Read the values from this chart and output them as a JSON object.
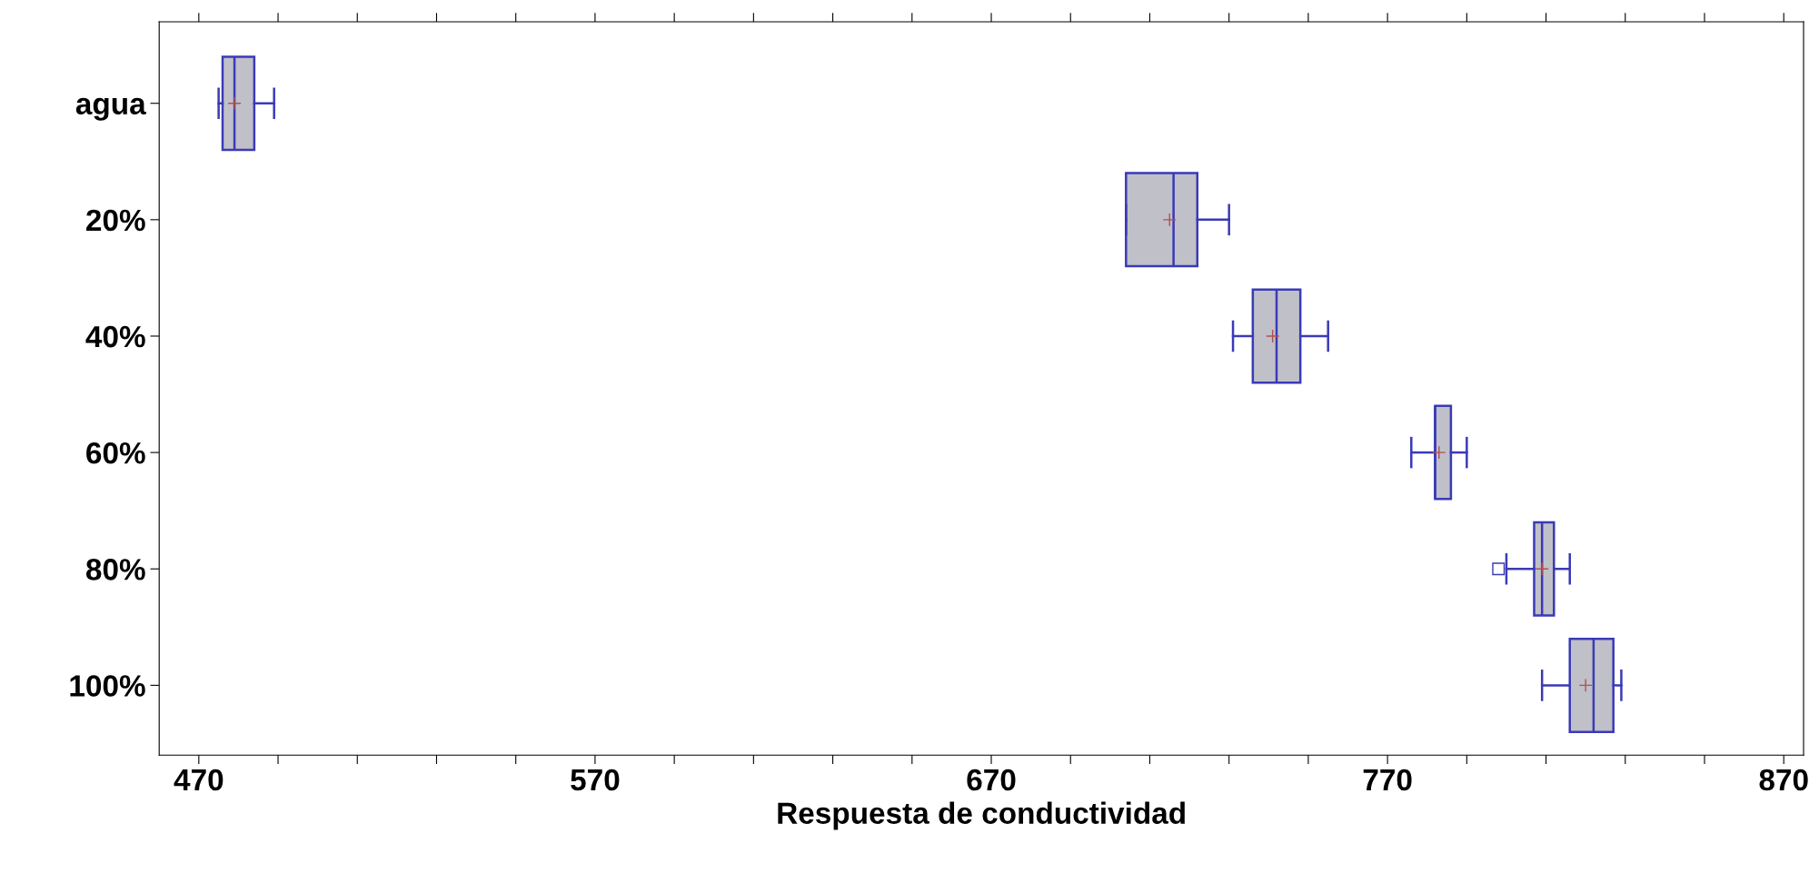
{
  "chart_data": {
    "type": "box",
    "orientation": "horizontal",
    "xlabel": "Respuesta de conductividad",
    "categories": [
      "agua",
      "20%",
      "40%",
      "60%",
      "80%",
      "100%"
    ],
    "boxes": [
      {
        "low": 475,
        "q1": 476,
        "median": 479,
        "q3": 484,
        "high": 489,
        "mean": 479
      },
      {
        "low": 704,
        "q1": 704,
        "median": 716,
        "q3": 722,
        "high": 730,
        "mean": 715
      },
      {
        "low": 731,
        "q1": 736,
        "median": 742,
        "q3": 748,
        "high": 755,
        "mean": 741
      },
      {
        "low": 776,
        "q1": 782,
        "median": 782,
        "q3": 786,
        "high": 790,
        "mean": 783
      },
      {
        "low": 800,
        "q1": 807,
        "median": 809,
        "q3": 812,
        "high": 816,
        "mean": 809,
        "outliers": [
          798
        ]
      },
      {
        "low": 809,
        "q1": 816,
        "median": 822,
        "q3": 827,
        "high": 829,
        "mean": 820
      }
    ],
    "color": "#c0c0c8",
    "xlim": [
      460,
      875
    ],
    "xticks": [
      470,
      {
        "value": 490,
        "label": null
      },
      {
        "value": 510,
        "label": null
      },
      {
        "value": 530,
        "label": null
      },
      {
        "value": 550,
        "label": null
      },
      570,
      {
        "value": 590,
        "label": null
      },
      {
        "value": 610,
        "label": null
      },
      {
        "value": 630,
        "label": null
      },
      {
        "value": 650,
        "label": null
      },
      670,
      {
        "value": 690,
        "label": null
      },
      {
        "value": 710,
        "label": null
      },
      {
        "value": 730,
        "label": null
      },
      {
        "value": 750,
        "label": null
      },
      770,
      {
        "value": 790,
        "label": null
      },
      {
        "value": 810,
        "label": null
      },
      {
        "value": 830,
        "label": null
      },
      {
        "value": 850,
        "label": null
      },
      870
    ],
    "grid": false
  }
}
